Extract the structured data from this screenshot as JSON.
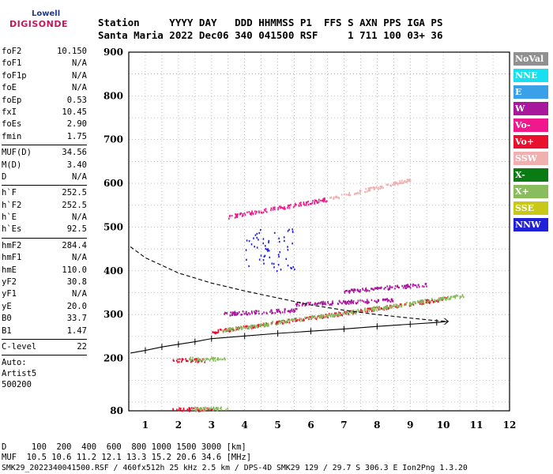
{
  "logo": {
    "brand": "Lowell",
    "product": "DIGISONDE"
  },
  "header": {
    "line1": "Station     YYYY DAY   DDD HHMMSS P1  FFS S AXN PPS IGA PS",
    "line2": "Santa Maria 2022 Dec06 340 041500 RSF     1 711 100 03+ 36"
  },
  "params": {
    "group1": [
      {
        "label": "foF2",
        "value": "10.150"
      },
      {
        "label": "foF1",
        "value": "N/A"
      },
      {
        "label": "foF1p",
        "value": "N/A"
      },
      {
        "label": "foE",
        "value": "N/A"
      },
      {
        "label": "foEp",
        "value": "0.53"
      },
      {
        "label": "fxI",
        "value": "10.45"
      },
      {
        "label": "foEs",
        "value": "2.90"
      },
      {
        "label": "fmin",
        "value": "1.75"
      }
    ],
    "group2": [
      {
        "label": "MUF(D)",
        "value": "34.56"
      },
      {
        "label": "M(D)",
        "value": "3.40"
      },
      {
        "label": "D",
        "value": "N/A"
      }
    ],
    "group3": [
      {
        "label": "h`F",
        "value": "252.5"
      },
      {
        "label": "h`F2",
        "value": "252.5"
      },
      {
        "label": "h`E",
        "value": "N/A"
      },
      {
        "label": "h`Es",
        "value": "92.5"
      }
    ],
    "group4": [
      {
        "label": "hmF2",
        "value": "284.4"
      },
      {
        "label": "hmF1",
        "value": "N/A"
      },
      {
        "label": "hmE",
        "value": "110.0"
      },
      {
        "label": "yF2",
        "value": "30.8"
      },
      {
        "label": "yF1",
        "value": "N/A"
      },
      {
        "label": "yE",
        "value": "20.0"
      },
      {
        "label": "B0",
        "value": "33.7"
      },
      {
        "label": "B1",
        "value": "1.47"
      }
    ],
    "group5": [
      {
        "label": "C-level",
        "value": "22"
      }
    ],
    "auto_lines": [
      "Auto:",
      "Artist5",
      "500200"
    ]
  },
  "legend": [
    {
      "label": "NoVal",
      "color": "#909090"
    },
    {
      "label": "NNE",
      "color": "#18e0f0"
    },
    {
      "label": "E",
      "color": "#3aa0e8"
    },
    {
      "label": "W",
      "color": "#a8189c"
    },
    {
      "label": "Vo-",
      "color": "#f0188c"
    },
    {
      "label": "Vo+",
      "color": "#e8102c"
    },
    {
      "label": "SSW",
      "color": "#f0b0b0"
    },
    {
      "label": "X-",
      "color": "#0a7a12"
    },
    {
      "label": "X+",
      "color": "#88bc5c"
    },
    {
      "label": "SSE",
      "color": "#c8c818"
    },
    {
      "label": "NNW",
      "color": "#2020d8"
    }
  ],
  "bottom": {
    "line1": "D     100  200  400  600  800 1000 1500 3000 [km]",
    "line2": "MUF  10.5 10.6 11.2 12.1 13.3 15.2 20.6 34.6 [MHz]",
    "line3": "SMK29_2022340041500.RSF / 460fx512h 25 kHz 2.5 km / DPS-4D SMK29 129 / 29.7 S 306.3 E Ion2Png 1.3.20"
  },
  "chart_data": {
    "type": "scatter",
    "xlabel": "",
    "ylabel": "",
    "xlim": [
      0.5,
      12
    ],
    "ylim": [
      80,
      900
    ],
    "x_ticks": [
      1,
      2,
      3,
      4,
      5,
      6,
      7,
      8,
      9,
      10,
      11,
      12
    ],
    "y_ticks": [
      80,
      200,
      300,
      400,
      500,
      600,
      700,
      800,
      900
    ],
    "grid": true,
    "trace_profile": {
      "name": "",
      "x": [
        0.55,
        1.0,
        1.5,
        2.0,
        2.5,
        3.0,
        4.0,
        5.0,
        6.0,
        7.0,
        8.0,
        9.0,
        9.8,
        10.15
      ],
      "y": [
        212,
        218,
        226,
        232,
        238,
        245,
        251,
        257,
        262,
        267,
        273,
        278,
        282,
        284.4
      ]
    },
    "density_profile": {
      "name": "",
      "x": [
        0.55,
        1.0,
        2.0,
        3.0,
        4.0,
        5.0,
        6.0,
        7.0,
        8.0,
        9.0,
        9.8,
        10.15
      ],
      "y": [
        455,
        430,
        395,
        372,
        354,
        338,
        322,
        310,
        300,
        292,
        286,
        284.4
      ]
    },
    "echo_bands": [
      {
        "polarization": "Vo+",
        "x_start": 1.8,
        "x_end": 3.0,
        "y_start": 85,
        "y_end": 85
      },
      {
        "polarization": "X+",
        "x_start": 2.4,
        "x_end": 3.5,
        "y_start": 86,
        "y_end": 86
      },
      {
        "polarization": "Vo+",
        "x_start": 1.8,
        "x_end": 2.8,
        "y_start": 197,
        "y_end": 197
      },
      {
        "polarization": "X+",
        "x_start": 2.3,
        "x_end": 3.4,
        "y_start": 200,
        "y_end": 200
      },
      {
        "polarization": "Vo+",
        "x_start": 3.0,
        "x_end": 10.1,
        "y_start": 262,
        "y_end": 338
      },
      {
        "polarization": "X+",
        "x_start": 3.3,
        "x_end": 10.6,
        "y_start": 265,
        "y_end": 345
      },
      {
        "polarization": "W",
        "x_start": 3.3,
        "x_end": 5.6,
        "y_start": 303,
        "y_end": 312
      },
      {
        "polarization": "W",
        "x_start": 5.5,
        "x_end": 8.5,
        "y_start": 325,
        "y_end": 335
      },
      {
        "polarization": "W",
        "x_start": 7.0,
        "x_end": 9.5,
        "y_start": 355,
        "y_end": 370
      },
      {
        "polarization": "Vo-",
        "x_start": 3.5,
        "x_end": 6.5,
        "y_start": 525,
        "y_end": 565
      },
      {
        "polarization": "SSW",
        "x_start": 6.5,
        "x_end": 9.0,
        "y_start": 565,
        "y_end": 610
      },
      {
        "polarization": "NNW",
        "x_start": 4.0,
        "x_end": 5.5,
        "y_start": 400,
        "y_end": 500
      }
    ]
  }
}
